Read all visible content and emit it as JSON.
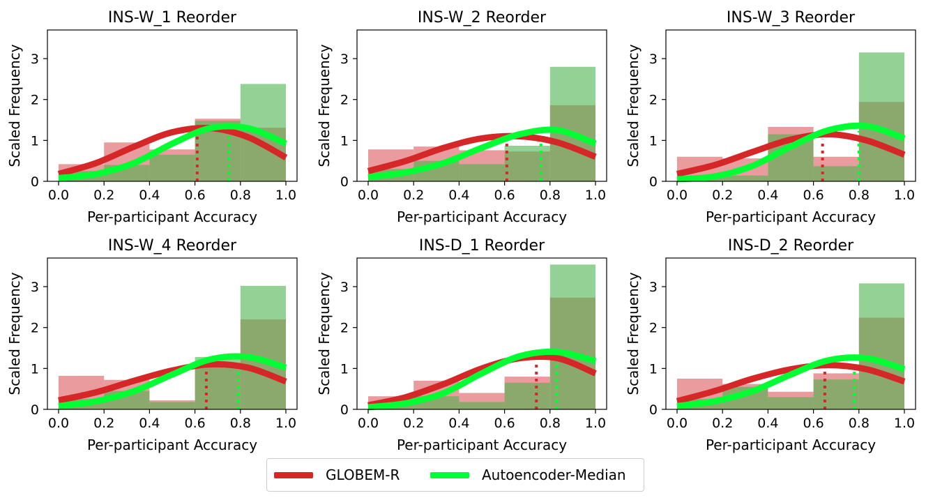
{
  "chart_data": [
    {
      "type": "bar",
      "title": "INS-W_1 Reorder",
      "xlabel": "Per-participant Accuracy",
      "ylabel": "Scaled Frequency",
      "xlim": [
        0,
        1
      ],
      "ylim": [
        0,
        3.7
      ],
      "bins": [
        0,
        0.2,
        0.4,
        0.6,
        0.8,
        1.0
      ],
      "series": [
        {
          "name": "GLOBEM-R",
          "color": "#d62728",
          "hist": [
            0.42,
            0.95,
            0.78,
            1.53,
            1.31
          ],
          "kde": [
            0.18,
            0.45,
            0.85,
            1.2,
            1.3,
            1.08,
            0.58
          ],
          "median": 0.61
        },
        {
          "name": "Autoencoder-Median",
          "color": "#00ff33",
          "hist": [
            0.25,
            0.4,
            0.65,
            1.48,
            2.38
          ],
          "kde": [
            0.08,
            0.18,
            0.45,
            0.92,
            1.3,
            1.3,
            0.92
          ],
          "median": 0.75
        }
      ]
    },
    {
      "type": "bar",
      "title": "INS-W_2 Reorder",
      "xlabel": "Per-participant Accuracy",
      "ylabel": "Scaled Frequency",
      "xlim": [
        0,
        1
      ],
      "ylim": [
        0,
        3.7
      ],
      "bins": [
        0,
        0.2,
        0.4,
        0.6,
        0.8,
        1.0
      ],
      "series": [
        {
          "name": "GLOBEM-R",
          "color": "#d62728",
          "hist": [
            0.78,
            0.85,
            0.76,
            0.73,
            1.86
          ],
          "kde": [
            0.25,
            0.5,
            0.82,
            1.05,
            1.1,
            0.95,
            0.6
          ],
          "median": 0.61
        },
        {
          "name": "Autoencoder-Median",
          "color": "#00ff33",
          "hist": [
            0.3,
            0.5,
            0.42,
            0.87,
            2.8
          ],
          "kde": [
            0.1,
            0.22,
            0.45,
            0.82,
            1.15,
            1.25,
            0.92
          ],
          "median": 0.76
        }
      ]
    },
    {
      "type": "bar",
      "title": "INS-W_3 Reorder",
      "xlabel": "Per-participant Accuracy",
      "ylabel": "Scaled Frequency",
      "xlim": [
        0,
        1
      ],
      "ylim": [
        0,
        3.7
      ],
      "bins": [
        0,
        0.2,
        0.4,
        0.6,
        0.8,
        1.0
      ],
      "series": [
        {
          "name": "GLOBEM-R",
          "color": "#d62728",
          "hist": [
            0.6,
            0.56,
            1.33,
            0.6,
            1.94
          ],
          "kde": [
            0.18,
            0.4,
            0.72,
            1.02,
            1.15,
            1.0,
            0.65
          ],
          "median": 0.64
        },
        {
          "name": "Autoencoder-Median",
          "color": "#00ff33",
          "hist": [
            0.12,
            0.14,
            1.15,
            0.37,
            3.15
          ],
          "kde": [
            0.05,
            0.12,
            0.38,
            0.85,
            1.25,
            1.35,
            1.05
          ],
          "median": 0.8
        }
      ]
    },
    {
      "type": "bar",
      "title": "INS-W_4 Reorder",
      "xlabel": "Per-participant Accuracy",
      "ylabel": "Scaled Frequency",
      "xlim": [
        0,
        1
      ],
      "ylim": [
        0,
        3.7
      ],
      "bins": [
        0,
        0.2,
        0.4,
        0.6,
        0.8,
        1.0
      ],
      "series": [
        {
          "name": "GLOBEM-R",
          "color": "#d62728",
          "hist": [
            0.82,
            0.72,
            0.22,
            1.1,
            2.2
          ],
          "kde": [
            0.22,
            0.42,
            0.7,
            0.95,
            1.1,
            1.02,
            0.68
          ],
          "median": 0.65
        },
        {
          "name": "Autoencoder-Median",
          "color": "#00ff33",
          "hist": [
            0.25,
            0.45,
            0.18,
            1.28,
            3.02
          ],
          "kde": [
            0.08,
            0.2,
            0.45,
            0.85,
            1.22,
            1.28,
            1.02
          ],
          "median": 0.79
        }
      ]
    },
    {
      "type": "bar",
      "title": "INS-D_1 Reorder",
      "xlabel": "Per-participant Accuracy",
      "ylabel": "Scaled Frequency",
      "xlim": [
        0,
        1
      ],
      "ylim": [
        0,
        3.7
      ],
      "bins": [
        0,
        0.2,
        0.4,
        0.6,
        0.8,
        1.0
      ],
      "series": [
        {
          "name": "GLOBEM-R",
          "color": "#d62728",
          "hist": [
            0.32,
            0.7,
            0.4,
            0.8,
            2.73
          ],
          "kde": [
            0.1,
            0.3,
            0.62,
            1.0,
            1.25,
            1.25,
            0.88
          ],
          "median": 0.74
        },
        {
          "name": "Autoencoder-Median",
          "color": "#00ff33",
          "hist": [
            0.12,
            0.32,
            0.18,
            0.65,
            3.54
          ],
          "kde": [
            0.05,
            0.15,
            0.4,
            0.88,
            1.3,
            1.4,
            1.18
          ],
          "median": 0.83
        }
      ]
    },
    {
      "type": "bar",
      "title": "INS-D_2 Reorder",
      "xlabel": "Per-participant Accuracy",
      "ylabel": "Scaled Frequency",
      "xlim": [
        0,
        1
      ],
      "ylim": [
        0,
        3.7
      ],
      "bins": [
        0,
        0.2,
        0.4,
        0.6,
        0.8,
        1.0
      ],
      "series": [
        {
          "name": "GLOBEM-R",
          "color": "#d62728",
          "hist": [
            0.75,
            0.62,
            0.43,
            0.88,
            2.24
          ],
          "kde": [
            0.2,
            0.45,
            0.75,
            0.98,
            1.08,
            0.98,
            0.68
          ],
          "median": 0.65
        },
        {
          "name": "Autoencoder-Median",
          "color": "#00ff33",
          "hist": [
            0.25,
            0.55,
            0.3,
            0.73,
            3.08
          ],
          "kde": [
            0.08,
            0.2,
            0.45,
            0.85,
            1.2,
            1.25,
            0.98
          ],
          "median": 0.78
        }
      ]
    }
  ],
  "axes": {
    "x_ticks": [
      "0.0",
      "0.2",
      "0.4",
      "0.6",
      "0.8",
      "1.0"
    ],
    "y_ticks": [
      "0",
      "1",
      "2",
      "3"
    ]
  },
  "legend": [
    {
      "label": "GLOBEM-R",
      "color": "#d62728"
    },
    {
      "label": "Autoencoder-Median",
      "color": "#00ff33"
    }
  ]
}
